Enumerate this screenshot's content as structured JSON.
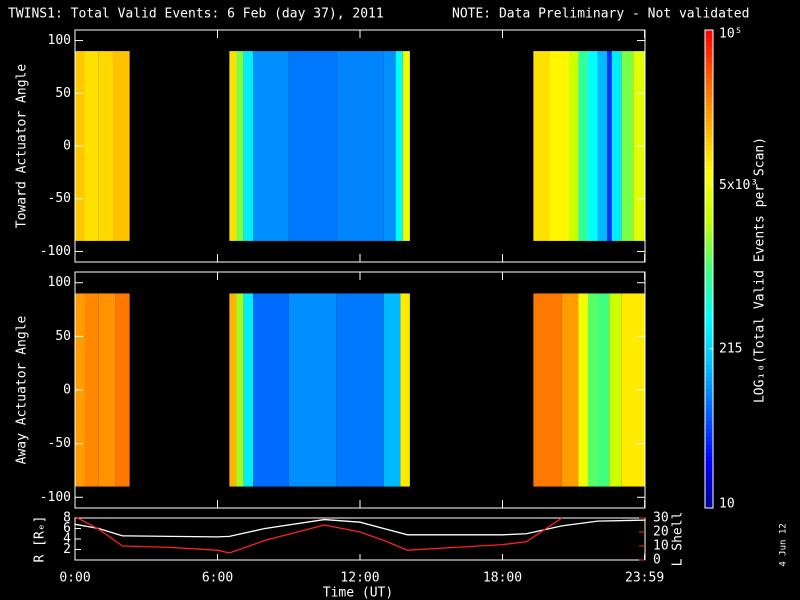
{
  "chart_data": {
    "type": "spectrogram",
    "title": "TWINS1: Total Valid Events:  6 Feb (day  37), 2011",
    "note": "NOTE: Data Preliminary - Not validated",
    "note_color": "#ff2020",
    "xlim": [
      0,
      24
    ],
    "xticks": [
      {
        "value": 0,
        "label": "0:00"
      },
      {
        "value": 6,
        "label": "6:00"
      },
      {
        "value": 12,
        "label": "12:00"
      },
      {
        "value": 18,
        "label": "18:00"
      },
      {
        "value": 23.983,
        "label": "23:59"
      }
    ],
    "xlabel": "Time (UT)",
    "colorbar": {
      "label": "LOG₁₀(Total Valid Events per Scan)",
      "lim": [
        10,
        100000
      ],
      "log": true,
      "ticks": [
        10,
        215,
        {
          "value": 5000,
          "label": "5x10³"
        },
        {
          "value": 100000,
          "label": "10⁵"
        }
      ],
      "colormap": [
        "#00008c",
        "#0000ff",
        "#0060ff",
        "#00c0ff",
        "#00ffff",
        "#40ff80",
        "#c0ff00",
        "#ffff00",
        "#ffb000",
        "#ff6000",
        "#ff0000"
      ]
    },
    "panels": [
      {
        "ylabel": "Toward Actuator Angle",
        "ylim": [
          -110,
          110
        ],
        "yticks": [
          -100,
          -50,
          0,
          50,
          100
        ],
        "angle_range": [
          -90,
          90
        ],
        "bins": [
          0,
          0.4,
          1.0,
          1.6,
          2.3,
          6.5,
          6.8,
          7.1,
          7.5,
          9,
          11,
          13,
          13.5,
          13.8,
          14.1,
          19.3,
          20,
          20.8,
          21.2,
          21.6,
          22,
          22.4,
          22.6,
          23,
          23.5,
          24
        ],
        "values": [
          12000,
          9000,
          10000,
          13000,
          null,
          9000,
          1500,
          300,
          100,
          80,
          90,
          100,
          400,
          5000,
          null,
          9000,
          7000,
          3000,
          800,
          400,
          150,
          40,
          300,
          1500,
          4000
        ]
      },
      {
        "ylabel": "Away Actuator Angle",
        "ylim": [
          -110,
          110
        ],
        "yticks": [
          -100,
          -50,
          0,
          50,
          100
        ],
        "angle_range": [
          -90,
          90
        ],
        "bins": [
          0,
          0.4,
          1.0,
          1.7,
          2.3,
          6.5,
          6.8,
          7.1,
          7.5,
          9,
          11,
          13,
          13.7,
          14.1,
          19.3,
          20.5,
          21.2,
          21.6,
          22,
          22.5,
          23,
          24
        ],
        "values": [
          20000,
          25000,
          22000,
          30000,
          null,
          15000,
          2000,
          300,
          70,
          100,
          80,
          150,
          8000,
          null,
          30000,
          20000,
          5000,
          1200,
          1000,
          3000,
          8000
        ]
      }
    ],
    "orbit": {
      "type": "line",
      "ylabel": "R [Rₑ]",
      "y2label": "L Shell",
      "y2color": "#ff2020",
      "ylim": [
        0,
        8
      ],
      "yticks": [
        2,
        4,
        6,
        8
      ],
      "y2lim": [
        0,
        30
      ],
      "y2ticks": [
        0,
        10,
        20,
        30
      ],
      "x": [
        0,
        1,
        2,
        4,
        6,
        6.5,
        8,
        10.5,
        12,
        13,
        14,
        16,
        18,
        19,
        20.5,
        22,
        24
      ],
      "series": [
        {
          "name": "R",
          "color": "#ffffff",
          "values": [
            6.8,
            6,
            4.6,
            4.5,
            4.4,
            4.5,
            6,
            7.7,
            7.2,
            6,
            4.8,
            4.8,
            4.8,
            5,
            6.5,
            7.4,
            7.6
          ]
        },
        {
          "name": "L Shell",
          "color": "#ff2020",
          "axis": "y2",
          "values": [
            31,
            22,
            10,
            9,
            7,
            5,
            14,
            25,
            20,
            14,
            7,
            9,
            11,
            13,
            30,
            null,
            null
          ]
        }
      ]
    },
    "stamp": "4 Jun 12"
  }
}
